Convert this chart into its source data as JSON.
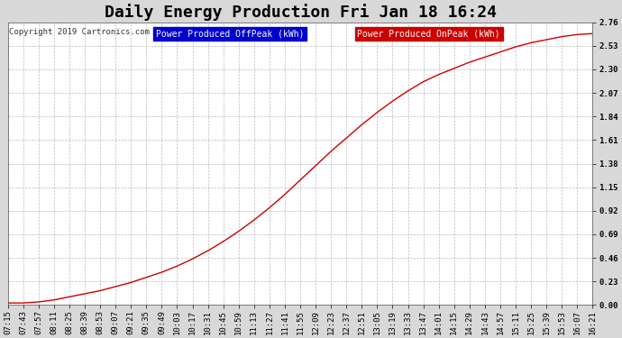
{
  "title": "Daily Energy Production Fri Jan 18 16:24",
  "copyright": "Copyright 2019 Cartronics.com",
  "legend_offpeak_label": "Power Produced OffPeak (kWh)",
  "legend_onpeak_label": "Power Produced OnPeak (kWh)",
  "legend_offpeak_color": "#0000cc",
  "legend_onpeak_color": "#cc0000",
  "line_color": "#cc0000",
  "background_color": "#d8d8d8",
  "plot_bg_color": "#ffffff",
  "ylim": [
    0.0,
    2.76
  ],
  "yticks": [
    0.0,
    0.23,
    0.46,
    0.69,
    0.92,
    1.15,
    1.38,
    1.61,
    1.84,
    2.07,
    2.3,
    2.53,
    2.76
  ],
  "xtick_labels": [
    "07:15",
    "07:43",
    "07:57",
    "08:11",
    "08:25",
    "08:39",
    "08:53",
    "09:07",
    "09:21",
    "09:35",
    "09:49",
    "10:03",
    "10:17",
    "10:31",
    "10:45",
    "10:59",
    "11:13",
    "11:27",
    "11:41",
    "11:55",
    "12:09",
    "12:23",
    "12:37",
    "12:51",
    "13:05",
    "13:19",
    "13:33",
    "13:47",
    "14:01",
    "14:15",
    "14:29",
    "14:43",
    "14:57",
    "15:11",
    "15:25",
    "15:39",
    "15:53",
    "16:07",
    "16:21"
  ],
  "title_fontsize": 13,
  "copyright_fontsize": 6.5,
  "tick_fontsize": 6.5,
  "legend_fontsize": 7,
  "y_values": [
    0.02,
    0.02,
    0.03,
    0.05,
    0.08,
    0.11,
    0.14,
    0.18,
    0.22,
    0.27,
    0.32,
    0.38,
    0.45,
    0.53,
    0.62,
    0.72,
    0.83,
    0.95,
    1.08,
    1.22,
    1.36,
    1.5,
    1.63,
    1.76,
    1.88,
    1.99,
    2.09,
    2.18,
    2.25,
    2.31,
    2.37,
    2.42,
    2.47,
    2.52,
    2.56,
    2.59,
    2.62,
    2.64,
    2.65
  ]
}
